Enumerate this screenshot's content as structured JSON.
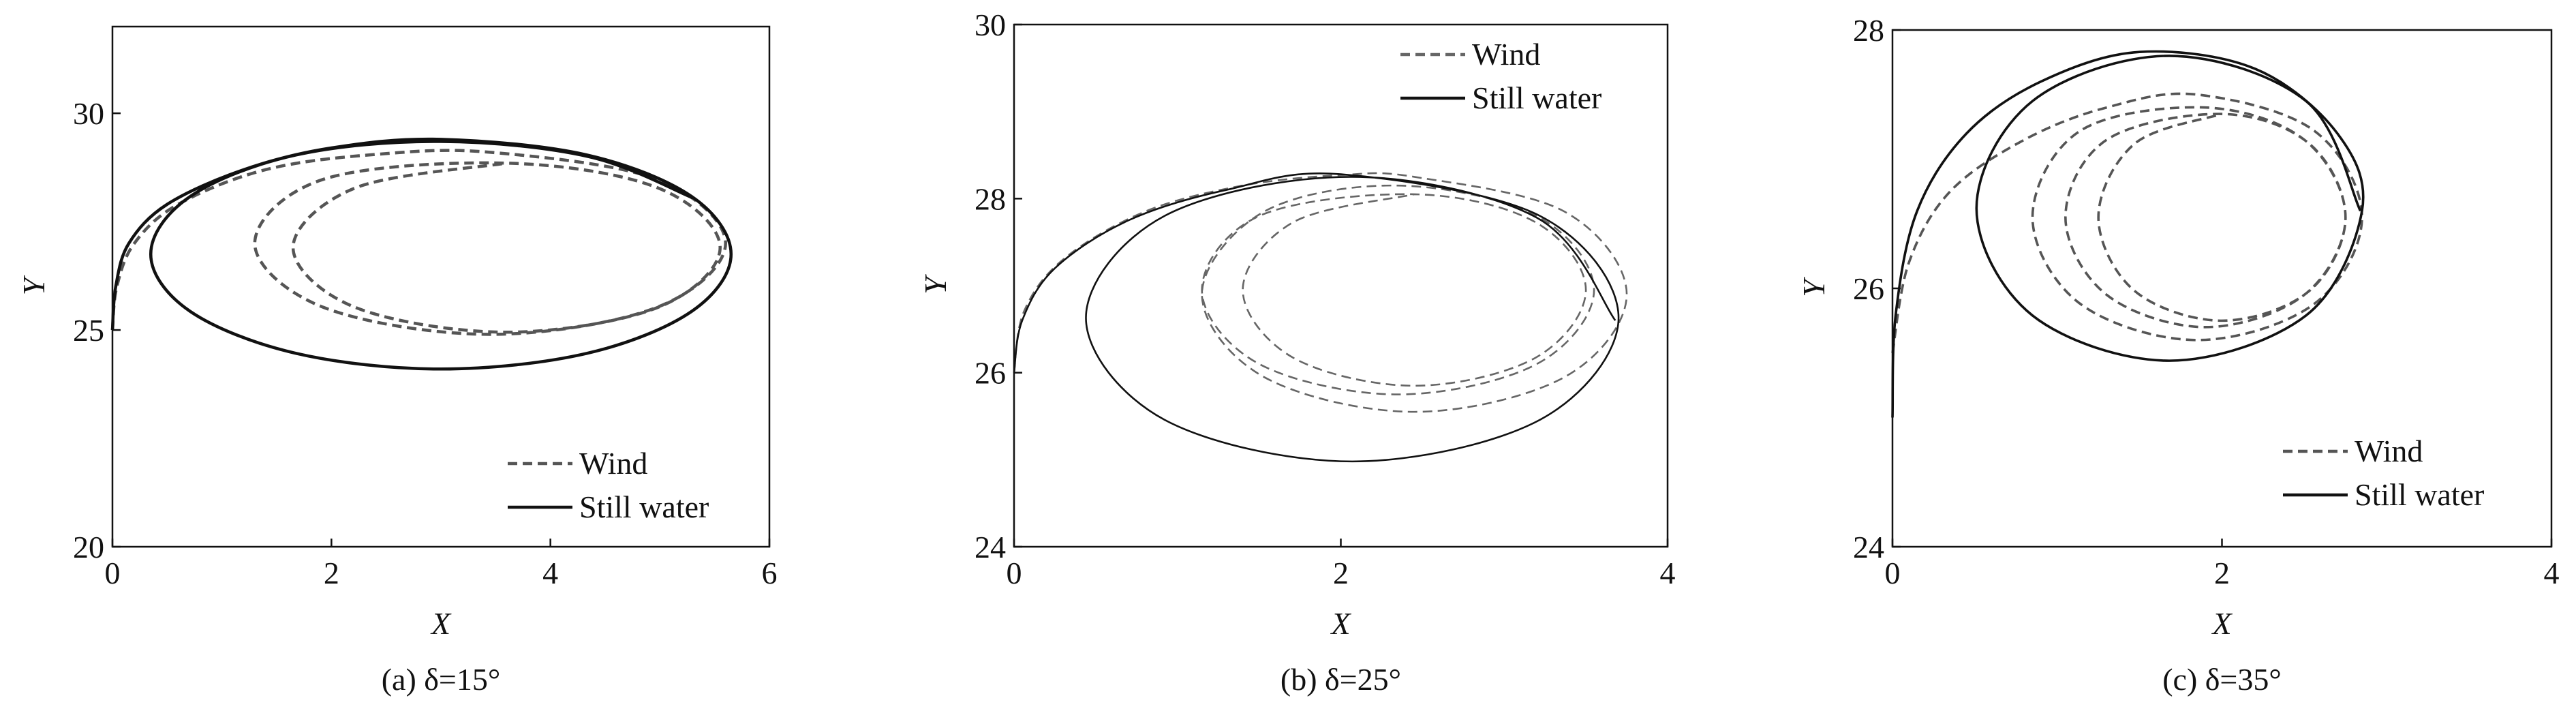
{
  "chart_data": [
    {
      "type": "line",
      "caption": "(a) δ=15°",
      "xlabel": "X",
      "ylabel": "Y",
      "xlim": [
        0,
        6
      ],
      "ylim": [
        20,
        32
      ],
      "xticks": [
        0,
        2,
        4,
        6
      ],
      "yticks": [
        20,
        25,
        30
      ],
      "legend": "lower right",
      "series": [
        {
          "name": "Wind",
          "color": "#555555",
          "style": "dashed",
          "x": [
            0,
            0.04,
            0.2,
            0.6,
            1.4,
            2.4,
            3.45,
            4.97,
            5.6,
            4.97,
            3.45,
            1.93,
            1.3,
            1.93,
            3.6,
            4.98,
            5.55,
            4.98,
            3.6,
            2.22,
            1.65,
            2.22,
            3.6
          ],
          "values": [
            25,
            26,
            27,
            27.9,
            28.7,
            29.05,
            29.1,
            28.48,
            27.0,
            25.52,
            24.9,
            25.52,
            27.0,
            28.48,
            28.85,
            28.28,
            26.9,
            25.52,
            24.95,
            25.52,
            26.9,
            28.28,
            28.85
          ]
        },
        {
          "name": "Still water",
          "color": "#111111",
          "style": "solid",
          "x": [
            0,
            0.03,
            0.15,
            0.5,
            1.2,
            2.0,
            3.0,
            4.33,
            5.29,
            5.65,
            5.29,
            4.33,
            3.0,
            1.68,
            0.71,
            0.35,
            0.71,
            1.68,
            3.0,
            4.35,
            5.3
          ],
          "values": [
            25,
            26,
            27,
            27.9,
            28.7,
            29.2,
            29.4,
            29.04,
            28.08,
            26.75,
            25.43,
            24.46,
            24.1,
            24.46,
            25.43,
            26.75,
            28.08,
            29.04,
            29.35,
            29.0,
            28.05
          ]
        }
      ]
    },
    {
      "type": "line",
      "caption": "(b) δ=25°",
      "xlabel": "X",
      "ylabel": "Y",
      "xlim": [
        0,
        4
      ],
      "ylim": [
        24,
        30
      ],
      "xticks": [
        0,
        2,
        4
      ],
      "yticks": [
        24,
        26,
        28,
        30
      ],
      "legend": "upper right",
      "series": [
        {
          "name": "Wind",
          "color": "#666666",
          "style": "dashed",
          "x": [
            0,
            0.06,
            0.3,
            0.8,
            1.4,
            2.0,
            2.45,
            3.37,
            3.75,
            3.37,
            2.45,
            1.53,
            1.15,
            1.53,
            2.35,
            3.2,
            3.55,
            3.2,
            2.35,
            1.5,
            1.15,
            1.5,
            2.45,
            3.19,
            3.5,
            3.19,
            2.45,
            1.71,
            1.4,
            1.71,
            2.45
          ],
          "values": [
            26,
            26.7,
            27.3,
            27.85,
            28.15,
            28.27,
            28.25,
            27.85,
            26.9,
            25.95,
            25.55,
            25.95,
            26.9,
            27.85,
            28.15,
            27.8,
            26.95,
            26.1,
            25.75,
            26.1,
            26.95,
            27.8,
            28.05,
            27.73,
            26.95,
            26.17,
            25.85,
            26.17,
            26.95,
            27.73,
            28.05
          ]
        },
        {
          "name": "Still water",
          "color": "#111111",
          "style": "solid",
          "x": [
            0,
            0.05,
            0.25,
            0.7,
            1.3,
            2.0,
            3.22,
            3.7,
            3.22,
            2.07,
            0.92,
            0.44,
            0.92,
            2.07,
            3.2,
            3.68
          ],
          "values": [
            26,
            26.6,
            27.2,
            27.75,
            28.1,
            28.28,
            27.8,
            26.63,
            25.46,
            24.98,
            25.46,
            26.63,
            27.8,
            28.25,
            27.78,
            26.6
          ]
        }
      ]
    },
    {
      "type": "line",
      "caption": "(c) δ=35°",
      "xlabel": "X",
      "ylabel": "Y",
      "xlim": [
        0,
        4
      ],
      "ylim": [
        24,
        28
      ],
      "xticks": [
        0,
        2,
        4
      ],
      "yticks": [
        24,
        26,
        28
      ],
      "legend": "lower right",
      "series": [
        {
          "name": "Wind",
          "color": "#555555",
          "style": "dashed",
          "x": [
            0,
            0.1,
            0.35,
            0.8,
            1.3,
            1.85,
            2.56,
            2.85,
            2.56,
            1.85,
            1.14,
            0.85,
            1.14,
            1.9,
            2.5,
            2.75,
            2.5,
            1.9,
            1.3,
            1.05,
            1.3,
            2.0,
            2.53,
            2.75,
            2.53,
            2.0,
            1.47,
            1.25,
            1.47,
            2.0
          ],
          "values": [
            25.5,
            26.2,
            26.75,
            27.15,
            27.4,
            27.5,
            27.22,
            26.55,
            25.88,
            25.6,
            25.88,
            26.55,
            27.22,
            27.4,
            27.15,
            26.55,
            25.95,
            25.7,
            25.95,
            26.55,
            27.15,
            27.35,
            27.12,
            26.55,
            25.98,
            25.75,
            25.98,
            26.55,
            27.12,
            27.35
          ]
        },
        {
          "name": "Still water",
          "color": "#111111",
          "style": "solid",
          "x": [
            0,
            0.02,
            0.15,
            0.45,
            0.9,
            1.5,
            2.2,
            2.7,
            2.85,
            2.51,
            1.68,
            0.85,
            0.51,
            0.85,
            1.68,
            2.51,
            2.84
          ],
          "values": [
            25,
            25.8,
            26.6,
            27.2,
            27.6,
            27.83,
            27.7,
            27.2,
            26.6,
            25.79,
            25.44,
            25.79,
            26.62,
            27.45,
            27.8,
            27.45,
            26.6
          ]
        }
      ]
    }
  ]
}
